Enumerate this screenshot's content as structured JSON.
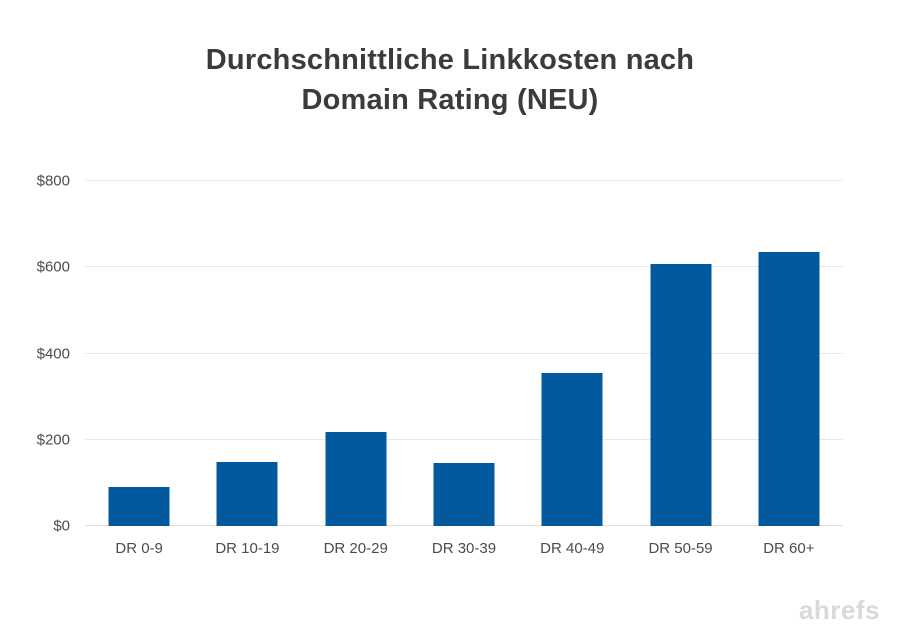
{
  "title": {
    "line1": "Durchschnittliche Linkkosten nach",
    "line2": "Domain Rating (NEU)"
  },
  "watermark": "ahrefs",
  "colors": {
    "bar": "#02599e",
    "title_text": "#3b3b3b",
    "axis_label_text": "#4c4c4c",
    "gridline": "#e8e8e8",
    "baseline": "#e0e0e0",
    "watermark": "#d9d9d9",
    "background": "#ffffff"
  },
  "chart_data": {
    "type": "bar",
    "title": "Durchschnittliche Linkkosten nach Domain Rating (NEU)",
    "categories": [
      "DR 0-9",
      "DR 10-19",
      "DR 20-29",
      "DR 30-39",
      "DR 40-49",
      "DR 50-59",
      "DR 60+"
    ],
    "values": [
      90,
      148,
      218,
      145,
      355,
      608,
      635
    ],
    "xlabel": "",
    "ylabel": "",
    "ylim": [
      0,
      800
    ],
    "ytick_interval": 200,
    "ytick_labels": [
      "$0",
      "$200",
      "$400",
      "$600",
      "$800"
    ],
    "grid": "horizontal",
    "legend": false
  }
}
